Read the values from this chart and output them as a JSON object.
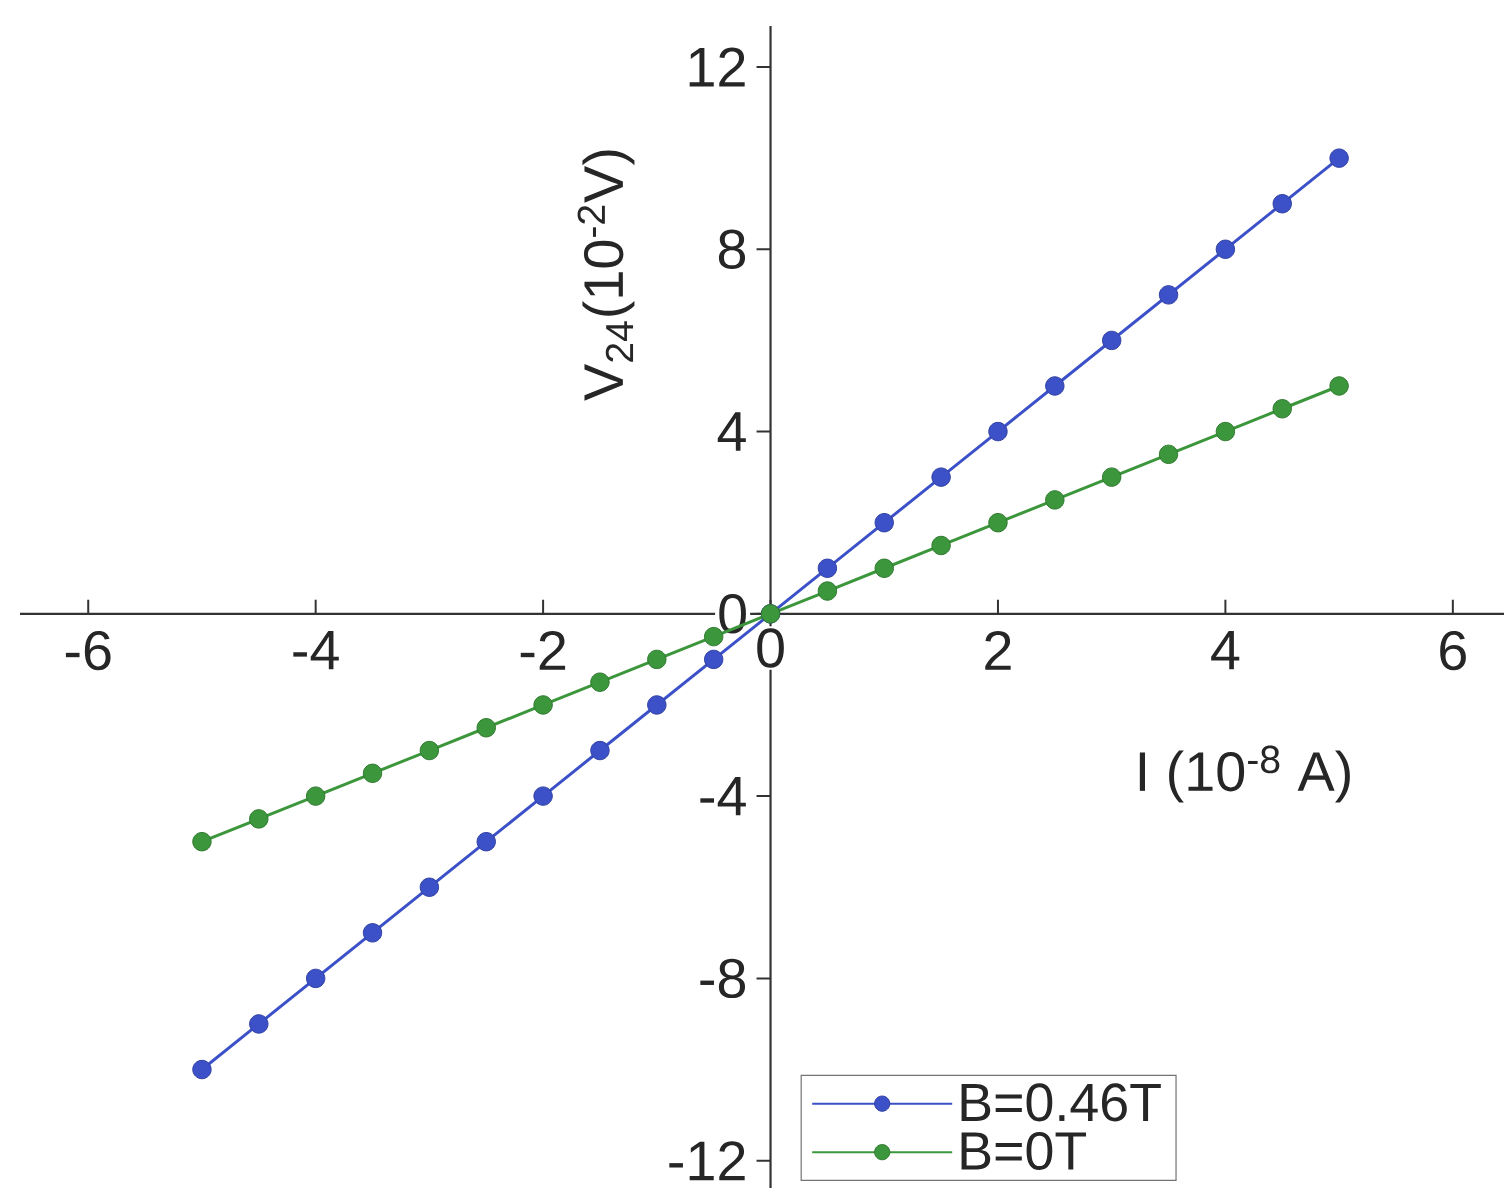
{
  "chart_data": {
    "type": "line",
    "xlabel": "I (10$^{-8}$ A)",
    "ylabel": "V$_{24}$(10$^{-2}$V)",
    "x": [
      -5,
      -4.5,
      -4,
      -3.5,
      -3,
      -2.5,
      -2,
      -1.5,
      -1,
      -0.5,
      0,
      0.5,
      1,
      1.5,
      2,
      2.5,
      3,
      3.5,
      4,
      4.5,
      5
    ],
    "series": [
      {
        "name": "B=0.46T",
        "color": "#3c50c8",
        "values": [
          -10,
          -9,
          -8,
          -7,
          -6,
          -5,
          -4,
          -3,
          -2,
          -1,
          0,
          1,
          2,
          3,
          4,
          5,
          6,
          7,
          8,
          9,
          10
        ]
      },
      {
        "name": "B=0T",
        "color": "#3c963c",
        "values": [
          -5,
          -4.5,
          -4,
          -3.5,
          -3,
          -2.5,
          -2,
          -1.5,
          -1,
          -0.5,
          0,
          0.5,
          1,
          1.5,
          2,
          2.5,
          3,
          3.5,
          4,
          4.5,
          5
        ]
      }
    ],
    "xlim": [
      -6.6,
      6.45
    ],
    "ylim": [
      -12.6,
      12.9
    ],
    "xticks": [
      -6,
      -4,
      -2,
      0,
      2,
      4,
      6
    ],
    "yticks": [
      -12,
      -8,
      -4,
      0,
      4,
      8,
      12
    ],
    "legend": "bottom",
    "marker": "circle",
    "line_style": "solid"
  }
}
